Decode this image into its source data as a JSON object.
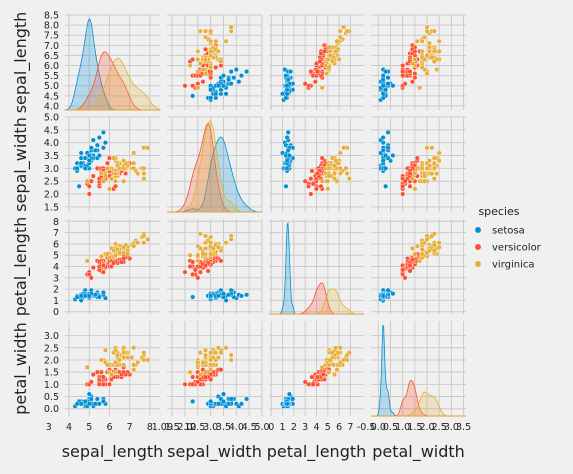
{
  "chart_data": {
    "type": "scatter",
    "variables": [
      "sepal_length",
      "sepal_width",
      "petal_length",
      "petal_width"
    ],
    "ranges": {
      "sepal_length": [
        3.8,
        8.5
      ],
      "sepal_width": [
        1.3,
        5.0
      ],
      "petal_length": [
        -0.2,
        8.2
      ],
      "petal_width": [
        -0.3,
        3.6
      ]
    },
    "y_ticks": {
      "sepal_length": [
        "4.0",
        "4.5",
        "5.0",
        "5.5",
        "6.0",
        "6.5",
        "7.0",
        "7.5",
        "8.0",
        "8.5"
      ],
      "sepal_width": [
        "1.5",
        "2.0",
        "2.5",
        "3.0",
        "3.5",
        "4.0",
        "4.5",
        "5.0"
      ],
      "petal_length": [
        "0",
        "1",
        "2",
        "3",
        "4",
        "5",
        "6",
        "7",
        "8"
      ],
      "petal_width": [
        "0.0",
        "0.5",
        "1.0",
        "1.5",
        "2.0",
        "2.5",
        "3.0"
      ]
    },
    "x_ticks": {
      "sepal_length": [
        "3",
        "4",
        "5",
        "6",
        "7",
        "8",
        "9",
        "10"
      ],
      "sepal_width": [
        "1.0",
        "1.5",
        "2.0",
        "2.5",
        "3.0",
        "3.5",
        "4.0",
        "4.5",
        "5.0"
      ],
      "petal_length": [
        "0",
        "1",
        "2",
        "3",
        "4",
        "5",
        "6",
        "7"
      ],
      "petal_width": [
        "-0.5",
        "0.0",
        "0.5",
        "1.0",
        "1.5",
        "2.0",
        "2.5",
        "3.0",
        "3.5"
      ]
    },
    "legend": {
      "title": "species",
      "position": "right"
    },
    "series": [
      {
        "name": "setosa",
        "color": "#008fd5",
        "points": [
          [
            5.1,
            3.5,
            1.4,
            0.2
          ],
          [
            4.9,
            3.0,
            1.4,
            0.2
          ],
          [
            4.7,
            3.2,
            1.3,
            0.2
          ],
          [
            4.6,
            3.1,
            1.5,
            0.2
          ],
          [
            5.0,
            3.6,
            1.4,
            0.2
          ],
          [
            5.4,
            3.9,
            1.7,
            0.4
          ],
          [
            4.6,
            3.4,
            1.4,
            0.3
          ],
          [
            5.0,
            3.4,
            1.5,
            0.2
          ],
          [
            4.4,
            2.9,
            1.4,
            0.2
          ],
          [
            4.9,
            3.1,
            1.5,
            0.1
          ],
          [
            5.4,
            3.7,
            1.5,
            0.2
          ],
          [
            4.8,
            3.4,
            1.6,
            0.2
          ],
          [
            4.8,
            3.0,
            1.4,
            0.1
          ],
          [
            4.3,
            3.0,
            1.1,
            0.1
          ],
          [
            5.8,
            4.0,
            1.2,
            0.2
          ],
          [
            5.7,
            4.4,
            1.5,
            0.4
          ],
          [
            5.4,
            3.9,
            1.3,
            0.4
          ],
          [
            5.1,
            3.5,
            1.4,
            0.3
          ],
          [
            5.7,
            3.8,
            1.7,
            0.3
          ],
          [
            5.1,
            3.8,
            1.5,
            0.3
          ],
          [
            5.4,
            3.4,
            1.7,
            0.2
          ],
          [
            5.1,
            3.7,
            1.5,
            0.4
          ],
          [
            4.6,
            3.6,
            1.0,
            0.2
          ],
          [
            5.1,
            3.3,
            1.7,
            0.5
          ],
          [
            4.8,
            3.4,
            1.9,
            0.2
          ],
          [
            5.0,
            3.0,
            1.6,
            0.2
          ],
          [
            5.0,
            3.4,
            1.6,
            0.4
          ],
          [
            5.2,
            3.5,
            1.5,
            0.2
          ],
          [
            5.2,
            3.4,
            1.4,
            0.2
          ],
          [
            4.7,
            3.2,
            1.6,
            0.2
          ],
          [
            4.8,
            3.1,
            1.6,
            0.2
          ],
          [
            5.4,
            3.4,
            1.5,
            0.4
          ],
          [
            5.2,
            4.1,
            1.5,
            0.1
          ],
          [
            5.5,
            4.2,
            1.4,
            0.2
          ],
          [
            4.9,
            3.1,
            1.5,
            0.2
          ],
          [
            5.0,
            3.2,
            1.2,
            0.2
          ],
          [
            5.5,
            3.5,
            1.3,
            0.2
          ],
          [
            4.9,
            3.6,
            1.4,
            0.1
          ],
          [
            4.4,
            3.0,
            1.3,
            0.2
          ],
          [
            5.1,
            3.4,
            1.5,
            0.2
          ],
          [
            5.0,
            3.5,
            1.3,
            0.3
          ],
          [
            4.5,
            2.3,
            1.3,
            0.3
          ],
          [
            4.4,
            3.2,
            1.3,
            0.2
          ],
          [
            5.0,
            3.5,
            1.6,
            0.6
          ],
          [
            5.1,
            3.8,
            1.9,
            0.4
          ],
          [
            4.8,
            3.0,
            1.4,
            0.3
          ],
          [
            5.1,
            3.8,
            1.6,
            0.2
          ],
          [
            4.6,
            3.2,
            1.4,
            0.2
          ],
          [
            5.3,
            3.7,
            1.5,
            0.2
          ],
          [
            5.0,
            3.3,
            1.4,
            0.2
          ]
        ]
      },
      {
        "name": "versicolor",
        "color": "#fc4f30",
        "points": [
          [
            7.0,
            3.2,
            4.7,
            1.4
          ],
          [
            6.4,
            3.2,
            4.5,
            1.5
          ],
          [
            6.9,
            3.1,
            4.9,
            1.5
          ],
          [
            5.5,
            2.3,
            4.0,
            1.3
          ],
          [
            6.5,
            2.8,
            4.6,
            1.5
          ],
          [
            5.7,
            2.8,
            4.5,
            1.3
          ],
          [
            6.3,
            3.3,
            4.7,
            1.6
          ],
          [
            4.9,
            2.4,
            3.3,
            1.0
          ],
          [
            6.6,
            2.9,
            4.6,
            1.3
          ],
          [
            5.2,
            2.7,
            3.9,
            1.4
          ],
          [
            5.0,
            2.0,
            3.5,
            1.0
          ],
          [
            5.9,
            3.0,
            4.2,
            1.5
          ],
          [
            6.0,
            2.2,
            4.0,
            1.0
          ],
          [
            6.1,
            2.9,
            4.7,
            1.4
          ],
          [
            5.6,
            2.9,
            3.6,
            1.3
          ],
          [
            6.7,
            3.1,
            4.4,
            1.4
          ],
          [
            5.6,
            3.0,
            4.5,
            1.5
          ],
          [
            5.8,
            2.7,
            4.1,
            1.0
          ],
          [
            6.2,
            2.2,
            4.5,
            1.5
          ],
          [
            5.6,
            2.5,
            3.9,
            1.1
          ],
          [
            5.9,
            3.2,
            4.8,
            1.8
          ],
          [
            6.1,
            2.8,
            4.0,
            1.3
          ],
          [
            6.3,
            2.5,
            4.9,
            1.5
          ],
          [
            6.1,
            2.8,
            4.7,
            1.2
          ],
          [
            6.4,
            2.9,
            4.3,
            1.3
          ],
          [
            6.6,
            3.0,
            4.4,
            1.4
          ],
          [
            6.8,
            2.8,
            4.8,
            1.4
          ],
          [
            6.7,
            3.0,
            5.0,
            1.7
          ],
          [
            6.0,
            2.9,
            4.5,
            1.5
          ],
          [
            5.7,
            2.6,
            3.5,
            1.0
          ],
          [
            5.5,
            2.4,
            3.8,
            1.1
          ],
          [
            5.5,
            2.4,
            3.7,
            1.0
          ],
          [
            5.8,
            2.7,
            3.9,
            1.2
          ],
          [
            6.0,
            2.7,
            5.1,
            1.6
          ],
          [
            5.4,
            3.0,
            4.5,
            1.5
          ],
          [
            6.0,
            3.4,
            4.5,
            1.6
          ],
          [
            6.7,
            3.1,
            4.7,
            1.5
          ],
          [
            6.3,
            2.3,
            4.4,
            1.3
          ],
          [
            5.6,
            3.0,
            4.1,
            1.3
          ],
          [
            5.5,
            2.5,
            4.0,
            1.3
          ],
          [
            5.5,
            2.6,
            4.4,
            1.2
          ],
          [
            6.1,
            3.0,
            4.6,
            1.4
          ],
          [
            5.8,
            2.6,
            4.0,
            1.2
          ],
          [
            5.0,
            2.3,
            3.3,
            1.0
          ],
          [
            5.6,
            2.7,
            4.2,
            1.3
          ],
          [
            5.7,
            3.0,
            4.2,
            1.2
          ],
          [
            5.7,
            2.9,
            4.2,
            1.3
          ],
          [
            6.2,
            2.9,
            4.3,
            1.3
          ],
          [
            5.1,
            2.5,
            3.0,
            1.1
          ],
          [
            5.7,
            2.8,
            4.1,
            1.3
          ]
        ]
      },
      {
        "name": "virginica",
        "color": "#e5ae38",
        "points": [
          [
            6.3,
            3.3,
            6.0,
            2.5
          ],
          [
            5.8,
            2.7,
            5.1,
            1.9
          ],
          [
            7.1,
            3.0,
            5.9,
            2.1
          ],
          [
            6.3,
            2.9,
            5.6,
            1.8
          ],
          [
            6.5,
            3.0,
            5.8,
            2.2
          ],
          [
            7.6,
            3.0,
            6.6,
            2.1
          ],
          [
            4.9,
            2.5,
            4.5,
            1.7
          ],
          [
            7.3,
            2.9,
            6.3,
            1.8
          ],
          [
            6.7,
            2.5,
            5.8,
            1.8
          ],
          [
            7.2,
            3.6,
            6.1,
            2.5
          ],
          [
            6.5,
            3.2,
            5.1,
            2.0
          ],
          [
            6.4,
            2.7,
            5.3,
            1.9
          ],
          [
            6.8,
            3.0,
            5.5,
            2.1
          ],
          [
            5.7,
            2.5,
            5.0,
            2.0
          ],
          [
            5.8,
            2.8,
            5.1,
            2.4
          ],
          [
            6.4,
            3.2,
            5.3,
            2.3
          ],
          [
            6.5,
            3.0,
            5.5,
            1.8
          ],
          [
            7.7,
            3.8,
            6.7,
            2.2
          ],
          [
            7.7,
            2.6,
            6.9,
            2.3
          ],
          [
            6.0,
            2.2,
            5.0,
            1.5
          ],
          [
            6.9,
            3.2,
            5.7,
            2.3
          ],
          [
            5.6,
            2.8,
            4.9,
            2.0
          ],
          [
            7.7,
            2.8,
            6.7,
            2.0
          ],
          [
            6.3,
            2.7,
            4.9,
            1.8
          ],
          [
            6.7,
            3.3,
            5.7,
            2.1
          ],
          [
            7.2,
            3.2,
            6.0,
            1.8
          ],
          [
            6.2,
            2.8,
            4.8,
            1.8
          ],
          [
            6.1,
            3.0,
            4.9,
            1.8
          ],
          [
            6.4,
            2.8,
            5.6,
            2.1
          ],
          [
            7.2,
            3.0,
            5.8,
            1.6
          ],
          [
            7.4,
            2.8,
            6.1,
            1.9
          ],
          [
            7.9,
            3.8,
            6.4,
            2.0
          ],
          [
            6.4,
            2.8,
            5.6,
            2.2
          ],
          [
            6.3,
            2.8,
            5.1,
            1.5
          ],
          [
            6.1,
            2.6,
            5.6,
            1.4
          ],
          [
            7.7,
            3.0,
            6.1,
            2.3
          ],
          [
            6.3,
            3.4,
            5.6,
            2.4
          ],
          [
            6.4,
            3.1,
            5.5,
            1.8
          ],
          [
            6.0,
            3.0,
            4.8,
            1.8
          ],
          [
            6.9,
            3.1,
            5.4,
            2.1
          ],
          [
            6.7,
            3.1,
            5.6,
            2.4
          ],
          [
            6.9,
            3.1,
            5.1,
            2.3
          ],
          [
            5.8,
            2.7,
            5.1,
            1.9
          ],
          [
            6.8,
            3.2,
            5.9,
            2.3
          ],
          [
            6.7,
            3.3,
            5.7,
            2.5
          ],
          [
            6.7,
            3.0,
            5.2,
            2.3
          ],
          [
            6.3,
            2.5,
            5.0,
            1.9
          ],
          [
            6.5,
            3.0,
            5.2,
            2.0
          ],
          [
            6.2,
            3.4,
            5.4,
            2.3
          ],
          [
            5.9,
            3.0,
            5.1,
            1.8
          ]
        ]
      }
    ]
  }
}
